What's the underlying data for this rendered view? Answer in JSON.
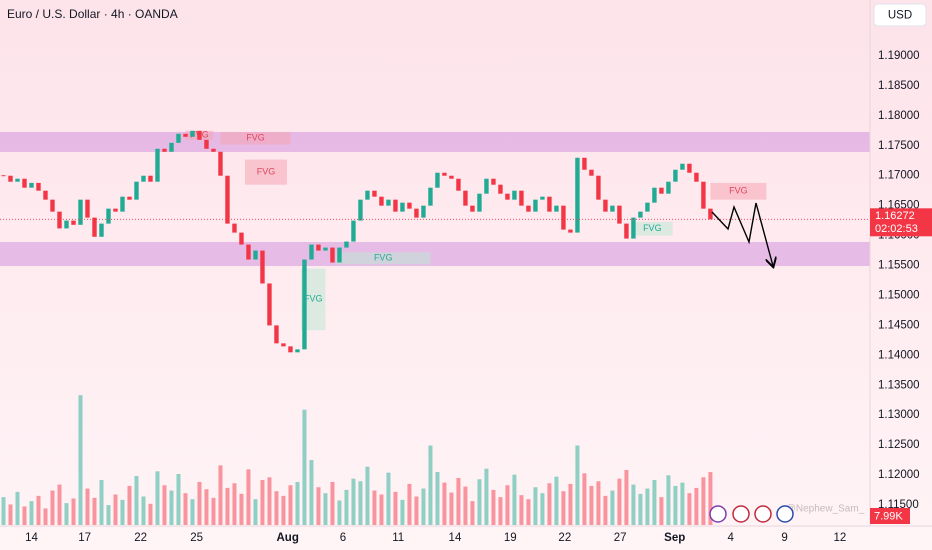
{
  "chart_data": {
    "type": "candlestick",
    "title": "Euro / U.S. Dollar · 4h · OANDA",
    "currency": "USD",
    "watermark": "@Nephew_Sam_",
    "close": [
      1.17,
      1.169,
      1.1695,
      1.168,
      1.1688,
      1.1675,
      1.166,
      1.164,
      1.1612,
      1.1625,
      1.1618,
      1.166,
      1.163,
      1.1598,
      1.162,
      1.1645,
      1.164,
      1.1665,
      1.166,
      1.169,
      1.17,
      1.169,
      1.1745,
      1.174,
      1.1755,
      1.177,
      1.1765,
      1.1775,
      1.176,
      1.1745,
      1.174,
      1.17,
      1.162,
      1.1605,
      1.1585,
      1.156,
      1.1575,
      1.152,
      1.145,
      1.142,
      1.1415,
      1.1405,
      1.141,
      1.156,
      1.1585,
      1.1575,
      1.158,
      1.1555,
      1.158,
      1.159,
      1.1625,
      1.166,
      1.1675,
      1.1665,
      1.165,
      1.166,
      1.164,
      1.1655,
      1.1645,
      1.163,
      1.165,
      1.168,
      1.1705,
      1.17,
      1.1695,
      1.1675,
      1.165,
      1.164,
      1.167,
      1.1695,
      1.1685,
      1.167,
      1.166,
      1.1675,
      1.165,
      1.164,
      1.166,
      1.1665,
      1.164,
      1.165,
      1.161,
      1.1605,
      1.173,
      1.171,
      1.17,
      1.166,
      1.164,
      1.165,
      1.162,
      1.1595,
      1.163,
      1.164,
      1.1655,
      1.168,
      1.167,
      1.169,
      1.171,
      1.172,
      1.1705,
      1.169,
      1.1645,
      1.16272
    ],
    "last_price_label": "1.16272",
    "countdown": "02:02:53",
    "volume": [
      4.2,
      3.1,
      5.0,
      2.8,
      3.6,
      4.4,
      2.5,
      5.2,
      6.1,
      3.3,
      4.0,
      19.6,
      5.5,
      4.1,
      6.8,
      3.0,
      4.6,
      3.8,
      5.9,
      7.4,
      4.3,
      3.2,
      8.1,
      6.0,
      5.2,
      7.7,
      4.8,
      3.9,
      6.5,
      5.4,
      4.1,
      9.0,
      5.6,
      6.3,
      4.7,
      8.4,
      3.9,
      6.8,
      7.2,
      5.1,
      4.4,
      6.0,
      6.5,
      17.4,
      9.8,
      5.7,
      4.8,
      6.5,
      3.7,
      5.3,
      7.0,
      6.6,
      8.8,
      5.2,
      4.6,
      7.9,
      5.0,
      3.8,
      6.2,
      4.3,
      5.5,
      12.0,
      8.0,
      6.4,
      4.9,
      7.1,
      5.8,
      3.6,
      6.9,
      8.5,
      5.3,
      4.2,
      6.0,
      7.6,
      4.5,
      3.9,
      5.7,
      4.8,
      6.3,
      7.3,
      5.1,
      6.2,
      12.0,
      7.8,
      5.9,
      6.6,
      4.4,
      5.2,
      7.0,
      8.3,
      6.1,
      4.7,
      5.5,
      6.8,
      4.2,
      7.5,
      5.9,
      6.4,
      4.8,
      5.6,
      7.2,
      7.99
    ],
    "volume_label": "7.99K",
    "vlim": [
      0,
      40
    ],
    "up_color": "#22ab94",
    "down_color": "#f23645",
    "ylim": [
      1.11166,
      1.19935
    ],
    "yticks": [
      {
        "value": 1.19,
        "label": "1.19000"
      },
      {
        "value": 1.185,
        "label": "1.18500"
      },
      {
        "value": 1.18,
        "label": "1.18000"
      },
      {
        "value": 1.175,
        "label": "1.17500"
      },
      {
        "value": 1.17,
        "label": "1.17000"
      },
      {
        "value": 1.165,
        "label": "1.16500"
      },
      {
        "value": 1.16,
        "label": "1.16000"
      },
      {
        "value": 1.155,
        "label": "1.15500"
      },
      {
        "value": 1.15,
        "label": "1.15000"
      },
      {
        "value": 1.145,
        "label": "1.14500"
      },
      {
        "value": 1.14,
        "label": "1.14000"
      },
      {
        "value": 1.135,
        "label": "1.13500"
      },
      {
        "value": 1.13,
        "label": "1.13000"
      },
      {
        "value": 1.125,
        "label": "1.12500"
      },
      {
        "value": 1.12,
        "label": "1.12000"
      },
      {
        "value": 1.115,
        "label": "1.11500"
      }
    ],
    "xlim": [
      -0.5,
      123.8
    ],
    "xticks": [
      {
        "value": 4,
        "label": "14"
      },
      {
        "value": 11.6,
        "label": "17"
      },
      {
        "value": 19.6,
        "label": "22"
      },
      {
        "value": 27.6,
        "label": "25"
      },
      {
        "value": 40.6,
        "label": "Aug"
      },
      {
        "value": 48.5,
        "label": "6"
      },
      {
        "value": 56.4,
        "label": "11"
      },
      {
        "value": 64.5,
        "label": "14"
      },
      {
        "value": 72.4,
        "label": "19"
      },
      {
        "value": 80.2,
        "label": "22"
      },
      {
        "value": 88.1,
        "label": "27"
      },
      {
        "value": 95.9,
        "label": "Sep"
      },
      {
        "value": 103.9,
        "label": "4"
      },
      {
        "value": 111.6,
        "label": "9"
      },
      {
        "value": 119.5,
        "label": "12"
      }
    ],
    "zones": [
      {
        "low": 1.17396,
        "high": 1.17731
      },
      {
        "low": 1.15492,
        "high": 1.15893
      }
    ],
    "zone_color": "#d59be0",
    "fvg": [
      {
        "label": "FVG",
        "from": 26,
        "to": 30,
        "low": 1.176,
        "high": 1.1775,
        "color": "#f6a5b4"
      },
      {
        "label": "FVG",
        "from": 31,
        "to": 41,
        "low": 1.1752,
        "high": 1.1773,
        "color": "#f6a5b4"
      },
      {
        "label": "FVG",
        "from": 34.5,
        "to": 40.5,
        "low": 1.1685,
        "high": 1.1727,
        "color": "#f6a5b4"
      },
      {
        "label": "FVG",
        "from": 42.5,
        "to": 46,
        "low": 1.1442,
        "high": 1.1545,
        "color": "#bfe8d4"
      },
      {
        "label": "FVG",
        "from": 47.5,
        "to": 61,
        "low": 1.1552,
        "high": 1.1572,
        "color": "#bfe8d4"
      },
      {
        "label": "FVG",
        "from": 89.8,
        "to": 95.6,
        "low": 1.16,
        "high": 1.1623,
        "color": "#bfe8d4"
      },
      {
        "label": "FVG",
        "from": 101,
        "to": 109,
        "low": 1.166,
        "high": 1.1688,
        "color": "#f6a5b4"
      }
    ]
  }
}
